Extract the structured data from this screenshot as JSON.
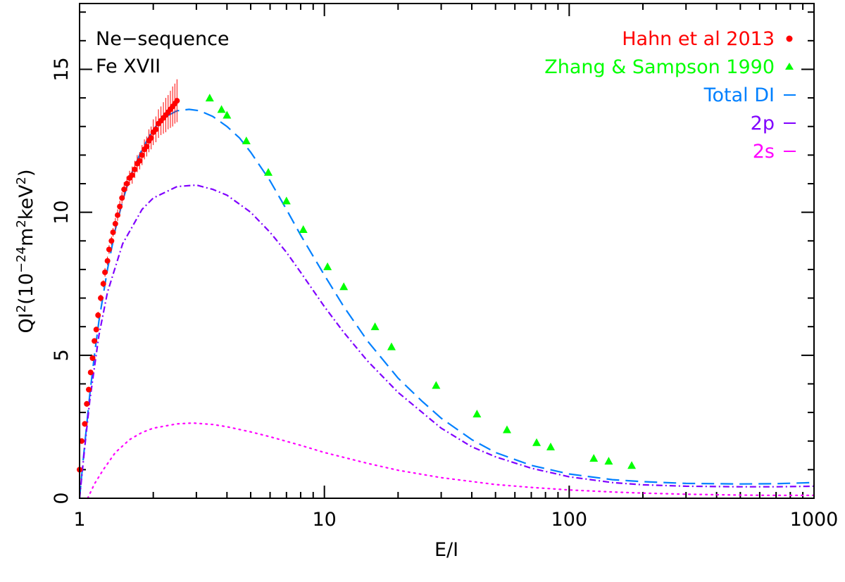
{
  "chart_data": {
    "type": "scatter",
    "title": "",
    "annotations": [
      "Ne−sequence",
      "Fe XVII"
    ],
    "xlabel": "E/I",
    "ylabel_parts": {
      "a": "QI",
      "a_sup": "2",
      "b": "(10",
      "b_sup": "−24",
      "c": "m",
      "c_sup": "2",
      "d": "keV",
      "d_sup": "2",
      "e": ")"
    },
    "x_scale": "log",
    "xlim": [
      1,
      1000
    ],
    "ylim": [
      0,
      17.3
    ],
    "x_ticks": [
      1,
      10,
      100,
      1000
    ],
    "x_tick_labels": [
      "1",
      "10",
      "100",
      "1000"
    ],
    "y_ticks": [
      0,
      5,
      10,
      15
    ],
    "y_tick_labels": [
      "0",
      "5",
      "10",
      "15"
    ],
    "legend_position": "top-right",
    "legend": [
      {
        "label": "Hahn et al 2013",
        "color": "#ff0000",
        "marker": "circle"
      },
      {
        "label": "Zhang & Sampson 1990",
        "color": "#00ff00",
        "marker": "triangle"
      },
      {
        "label": "Total DI",
        "color": "#0080ff",
        "marker": "dash"
      },
      {
        "label": "2p",
        "color": "#8000ff",
        "marker": "dash"
      },
      {
        "label": "2s",
        "color": "#ff00ff",
        "marker": "dash"
      }
    ],
    "series": [
      {
        "name": "Total DI",
        "kind": "line",
        "style": "dashed",
        "color": "#0080ff",
        "x": [
          1.0,
          1.02,
          1.05,
          1.1,
          1.15,
          1.2,
          1.3,
          1.4,
          1.5,
          1.6,
          1.8,
          2.0,
          2.2,
          2.5,
          2.8,
          3.1,
          3.5,
          4.0,
          4.5,
          5.0,
          6.0,
          7.0,
          8.0,
          10.0,
          12.0,
          15.0,
          20.0,
          25.0,
          30.0,
          40.0,
          50.0,
          70.0,
          100.0,
          150.0,
          200.0,
          300.0,
          500.0,
          700.0,
          1000.0
        ],
        "y": [
          0.0,
          0.8,
          1.9,
          3.6,
          5.0,
          6.2,
          8.0,
          9.4,
          10.4,
          11.2,
          12.2,
          12.9,
          13.3,
          13.55,
          13.6,
          13.55,
          13.35,
          13.0,
          12.6,
          12.1,
          11.1,
          10.1,
          9.2,
          7.8,
          6.7,
          5.5,
          4.2,
          3.4,
          2.8,
          2.05,
          1.6,
          1.15,
          0.85,
          0.65,
          0.58,
          0.52,
          0.5,
          0.51,
          0.55
        ]
      },
      {
        "name": "2p",
        "kind": "line",
        "style": "dash-dot",
        "color": "#8000ff",
        "x": [
          1.0,
          1.05,
          1.1,
          1.2,
          1.3,
          1.5,
          1.8,
          2.0,
          2.5,
          3.0,
          3.5,
          4.0,
          5.0,
          6.0,
          7.0,
          8.0,
          10.0,
          12.0,
          15.0,
          20.0,
          30.0,
          40.0,
          50.0,
          70.0,
          100.0,
          150.0,
          200.0,
          300.0,
          500.0,
          700.0,
          1000.0
        ],
        "y": [
          0.0,
          1.8,
          3.4,
          5.7,
          7.2,
          8.9,
          10.1,
          10.5,
          10.9,
          10.95,
          10.8,
          10.6,
          10.0,
          9.3,
          8.6,
          7.9,
          6.7,
          5.8,
          4.8,
          3.7,
          2.45,
          1.8,
          1.45,
          1.05,
          0.75,
          0.55,
          0.47,
          0.42,
          0.4,
          0.4,
          0.42
        ]
      },
      {
        "name": "2s",
        "kind": "line",
        "style": "dotted",
        "color": "#ff00ff",
        "x": [
          1.08,
          1.15,
          1.25,
          1.4,
          1.6,
          1.8,
          2.0,
          2.5,
          2.9,
          3.5,
          4.0,
          5.0,
          6.0,
          8.0,
          10.0,
          15.0,
          20.0,
          30.0,
          50.0,
          70.0,
          100.0,
          150.0,
          200.0,
          300.0,
          500.0,
          700.0,
          1000.0
        ],
        "y": [
          0.0,
          0.5,
          1.0,
          1.6,
          2.05,
          2.3,
          2.45,
          2.6,
          2.63,
          2.58,
          2.5,
          2.32,
          2.15,
          1.85,
          1.6,
          1.22,
          0.98,
          0.72,
          0.48,
          0.38,
          0.29,
          0.22,
          0.18,
          0.14,
          0.11,
          0.1,
          0.1
        ]
      },
      {
        "name": "Zhang & Sampson 1990",
        "kind": "scatter",
        "marker": "triangle",
        "color": "#00ff00",
        "x": [
          3.4,
          3.8,
          4.0,
          4.8,
          5.9,
          7.0,
          8.2,
          10.3,
          12.0,
          16.1,
          18.8,
          28.6,
          42.0,
          55.7,
          73.6,
          84.0,
          126.0,
          145.0,
          180.0
        ],
        "y": [
          14.0,
          13.6,
          13.4,
          12.5,
          11.4,
          10.4,
          9.4,
          8.1,
          7.4,
          6.0,
          5.3,
          3.95,
          2.95,
          2.4,
          1.95,
          1.8,
          1.4,
          1.3,
          1.15
        ]
      },
      {
        "name": "Hahn et al 2013",
        "kind": "scatter",
        "marker": "circle",
        "color": "#ff0000",
        "x": [
          1.0,
          1.02,
          1.05,
          1.07,
          1.09,
          1.11,
          1.13,
          1.15,
          1.17,
          1.19,
          1.22,
          1.25,
          1.27,
          1.3,
          1.32,
          1.35,
          1.37,
          1.4,
          1.43,
          1.46,
          1.49,
          1.52,
          1.56,
          1.6,
          1.64,
          1.68,
          1.72,
          1.76,
          1.8,
          1.84,
          1.88,
          1.92,
          1.96,
          2.0,
          2.05,
          2.1,
          2.15,
          2.2,
          2.25,
          2.3,
          2.35,
          2.4,
          2.45,
          2.5
        ],
        "y": [
          1.0,
          2.0,
          2.6,
          3.3,
          3.8,
          4.4,
          4.9,
          5.5,
          5.9,
          6.4,
          7.0,
          7.5,
          7.9,
          8.3,
          8.7,
          9.0,
          9.3,
          9.6,
          9.9,
          10.2,
          10.5,
          10.8,
          11.0,
          11.2,
          11.3,
          11.5,
          11.7,
          11.8,
          12.0,
          12.2,
          12.3,
          12.5,
          12.6,
          12.8,
          12.9,
          13.1,
          13.2,
          13.3,
          13.4,
          13.5,
          13.6,
          13.7,
          13.8,
          13.9
        ],
        "err": [
          0.1,
          0.1,
          0.1,
          0.1,
          0.1,
          0.1,
          0.1,
          0.1,
          0.1,
          0.12,
          0.12,
          0.12,
          0.15,
          0.15,
          0.15,
          0.15,
          0.15,
          0.2,
          0.2,
          0.2,
          0.2,
          0.25,
          0.25,
          0.25,
          0.3,
          0.3,
          0.3,
          0.3,
          0.35,
          0.35,
          0.35,
          0.4,
          0.4,
          0.45,
          0.45,
          0.5,
          0.5,
          0.55,
          0.6,
          0.6,
          0.65,
          0.7,
          0.7,
          0.75
        ]
      }
    ]
  }
}
